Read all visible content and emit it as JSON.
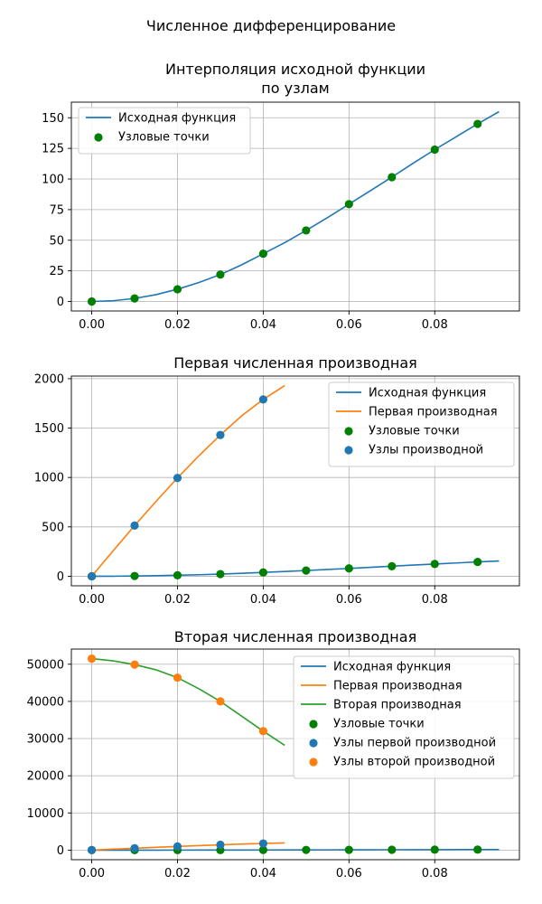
{
  "figure": {
    "title": "Численное дифференцирование"
  },
  "colors": {
    "c0": "#1f77b4",
    "c1": "#ff7f0e",
    "c2": "#2ca02c",
    "node": "#008000",
    "grid": "#b0b0b0"
  },
  "chart_data": [
    {
      "type": "line",
      "title_lines": [
        "Интерполяция исходной функции",
        "по узлам"
      ],
      "xlim": [
        -0.00475,
        0.09975
      ],
      "ylim": [
        -7.75,
        162.75
      ],
      "xticks": [
        0,
        0.02,
        0.04,
        0.06,
        0.08
      ],
      "xtick_labels": [
        "0.00",
        "0.02",
        "0.04",
        "0.06",
        "0.08"
      ],
      "yticks": [
        0,
        25,
        50,
        75,
        100,
        125,
        150
      ],
      "ytick_labels": [
        "0",
        "25",
        "50",
        "75",
        "100",
        "125",
        "150"
      ],
      "grid": true,
      "legend_position": "upper-left",
      "series": [
        {
          "name": "Исходная функция",
          "kind": "line",
          "color": "#1f77b4",
          "x": [
            0,
            0.005,
            0.01,
            0.015,
            0.02,
            0.025,
            0.03,
            0.035,
            0.04,
            0.045,
            0.05,
            0.055,
            0.06,
            0.065,
            0.07,
            0.075,
            0.08,
            0.085,
            0.09,
            0.095
          ],
          "y": [
            0,
            0.6,
            2.5,
            5.6,
            10,
            15.5,
            22,
            30,
            39,
            48,
            58,
            68.5,
            79.5,
            90.5,
            101.5,
            113,
            124,
            134.5,
            145,
            155
          ]
        },
        {
          "name": "Узловые точки",
          "kind": "scatter",
          "color": "#008000",
          "x": [
            0,
            0.01,
            0.02,
            0.03,
            0.04,
            0.05,
            0.06,
            0.07,
            0.08,
            0.09
          ],
          "y": [
            0,
            2.5,
            10,
            22,
            39,
            58,
            79.5,
            101.5,
            124,
            145
          ]
        }
      ]
    },
    {
      "type": "line",
      "title_lines": [
        "Первая численная производная"
      ],
      "xlim": [
        -0.00475,
        0.09975
      ],
      "ylim": [
        -96.5,
        2026.5
      ],
      "xticks": [
        0,
        0.02,
        0.04,
        0.06,
        0.08
      ],
      "xtick_labels": [
        "0.00",
        "0.02",
        "0.04",
        "0.06",
        "0.08"
      ],
      "yticks": [
        0,
        500,
        1000,
        1500,
        2000
      ],
      "ytick_labels": [
        "0",
        "500",
        "1000",
        "1500",
        "2000"
      ],
      "grid": true,
      "legend_position": "upper-right",
      "series": [
        {
          "name": "Исходная функция",
          "kind": "line",
          "color": "#1f77b4",
          "x": [
            0,
            0.005,
            0.01,
            0.015,
            0.02,
            0.025,
            0.03,
            0.035,
            0.04,
            0.045,
            0.05,
            0.055,
            0.06,
            0.065,
            0.07,
            0.075,
            0.08,
            0.085,
            0.09,
            0.095
          ],
          "y": [
            0,
            0.6,
            2.5,
            5.6,
            10,
            15.5,
            22,
            30,
            39,
            48,
            58,
            68.5,
            79.5,
            90.5,
            101.5,
            113,
            124,
            134.5,
            145,
            155
          ]
        },
        {
          "name": "Первая производная",
          "kind": "line",
          "color": "#ff7f0e",
          "x": [
            0,
            0.005,
            0.01,
            0.015,
            0.02,
            0.025,
            0.03,
            0.035,
            0.04,
            0.045
          ],
          "y": [
            0,
            258,
            513,
            758,
            995,
            1220,
            1430,
            1625,
            1790,
            1930
          ]
        },
        {
          "name": "Узловые точки",
          "kind": "scatter",
          "color": "#008000",
          "x": [
            0,
            0.01,
            0.02,
            0.03,
            0.04,
            0.05,
            0.06,
            0.07,
            0.08,
            0.09
          ],
          "y": [
            0,
            2.5,
            10,
            22,
            39,
            58,
            79.5,
            101.5,
            124,
            145
          ]
        },
        {
          "name": "Узлы производной",
          "kind": "scatter",
          "color": "#1f77b4",
          "x": [
            0,
            0.01,
            0.02,
            0.03,
            0.04
          ],
          "y": [
            0,
            513,
            995,
            1430,
            1790
          ]
        }
      ]
    },
    {
      "type": "line",
      "title_lines": [
        "Вторая численная производная"
      ],
      "xlim": [
        -0.00475,
        0.09975
      ],
      "ylim": [
        -2575,
        54075
      ],
      "xticks": [
        0,
        0.02,
        0.04,
        0.06,
        0.08
      ],
      "xtick_labels": [
        "0.00",
        "0.02",
        "0.04",
        "0.06",
        "0.08"
      ],
      "yticks": [
        0,
        10000,
        20000,
        30000,
        40000,
        50000
      ],
      "ytick_labels": [
        "0",
        "10000",
        "20000",
        "30000",
        "40000",
        "50000"
      ],
      "grid": true,
      "legend_position": "upper-right",
      "series": [
        {
          "name": "Исходная функция",
          "kind": "line",
          "color": "#1f77b4",
          "x": [
            0,
            0.005,
            0.01,
            0.015,
            0.02,
            0.025,
            0.03,
            0.035,
            0.04,
            0.045,
            0.05,
            0.055,
            0.06,
            0.065,
            0.07,
            0.075,
            0.08,
            0.085,
            0.09,
            0.095
          ],
          "y": [
            0,
            0.6,
            2.5,
            5.6,
            10,
            15.5,
            22,
            30,
            39,
            48,
            58,
            68.5,
            79.5,
            90.5,
            101.5,
            113,
            124,
            134.5,
            145,
            155
          ]
        },
        {
          "name": "Первая производная",
          "kind": "line",
          "color": "#ff7f0e",
          "x": [
            0,
            0.005,
            0.01,
            0.015,
            0.02,
            0.025,
            0.03,
            0.035,
            0.04,
            0.045
          ],
          "y": [
            0,
            258,
            513,
            758,
            995,
            1220,
            1430,
            1625,
            1790,
            1930
          ]
        },
        {
          "name": "Вторая производная",
          "kind": "line",
          "color": "#2ca02c",
          "x": [
            0,
            0.005,
            0.01,
            0.015,
            0.02,
            0.025,
            0.03,
            0.035,
            0.04,
            0.045
          ],
          "y": [
            51500,
            50900,
            49900,
            48500,
            46400,
            43400,
            40000,
            36000,
            32000,
            28200
          ]
        },
        {
          "name": "Узловые точки",
          "kind": "scatter",
          "color": "#008000",
          "x": [
            0,
            0.01,
            0.02,
            0.03,
            0.04,
            0.05,
            0.06,
            0.07,
            0.08,
            0.09
          ],
          "y": [
            0,
            2.5,
            10,
            22,
            39,
            58,
            79.5,
            101.5,
            124,
            145
          ]
        },
        {
          "name": "Узлы первой производной",
          "kind": "scatter",
          "color": "#1f77b4",
          "x": [
            0,
            0.01,
            0.02,
            0.03,
            0.04
          ],
          "y": [
            0,
            513,
            995,
            1430,
            1790
          ]
        },
        {
          "name": "Узлы второй производной",
          "kind": "scatter",
          "color": "#ff7f0e",
          "x": [
            0,
            0.01,
            0.02,
            0.03,
            0.04
          ],
          "y": [
            51500,
            49900,
            46400,
            40000,
            32000
          ]
        }
      ]
    }
  ]
}
